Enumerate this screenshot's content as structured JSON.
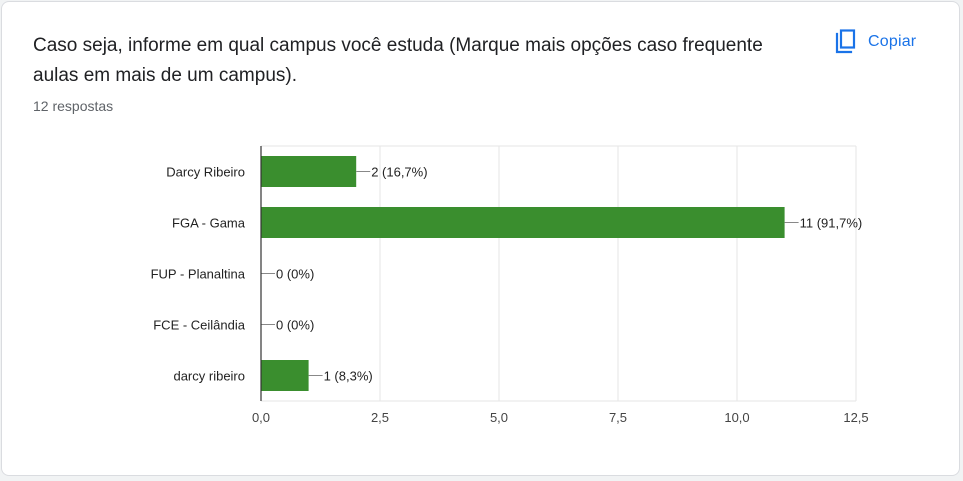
{
  "card": {
    "question": "Caso seja, informe em qual campus você estuda (Marque mais opções caso frequente aulas em mais de um campus).",
    "responses": "12 respostas",
    "copy_label": "Copiar",
    "copy_icon": "copy-icon"
  },
  "colors": {
    "bar": "#3a8e2e",
    "accent": "#1a73e8",
    "grid": "#e6e6e6",
    "axis": "#333333"
  },
  "chart_data": {
    "type": "bar",
    "orientation": "horizontal",
    "categories": [
      "Darcy Ribeiro",
      "FGA - Gama",
      "FUP - Planaltina",
      "FCE - Ceilândia",
      "darcy ribeiro"
    ],
    "values": [
      2,
      11,
      0,
      0,
      1
    ],
    "data_labels": [
      "2 (16,7%)",
      "11 (91,7%)",
      "0 (0%)",
      "0 (0%)",
      "1 (8,3%)"
    ],
    "xlim": [
      0,
      12.5
    ],
    "x_ticks": [
      0,
      2.5,
      5,
      7.5,
      10,
      12.5
    ],
    "x_tick_labels": [
      "0,0",
      "2,5",
      "5,0",
      "7,5",
      "10,0",
      "12,5"
    ],
    "grid": true,
    "legend": "none",
    "title": "",
    "xlabel": "",
    "ylabel": ""
  }
}
